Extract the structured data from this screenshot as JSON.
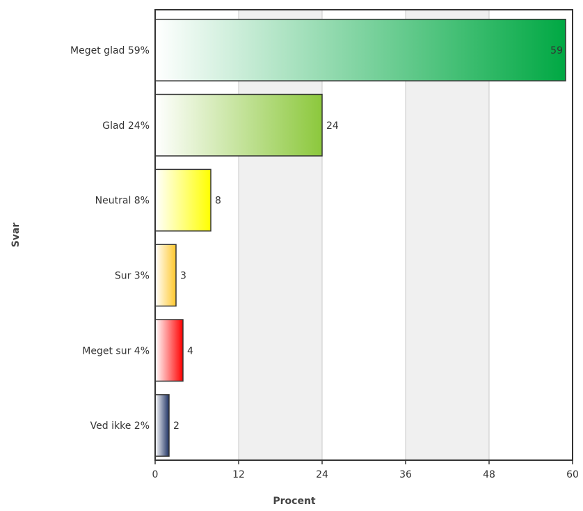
{
  "chart_data": {
    "type": "bar",
    "orientation": "horizontal",
    "categories": [
      "Meget glad 59%",
      "Glad 24%",
      "Neutral 8%",
      "Sur 3%",
      "Meget sur 4%",
      "Ved ikke 2%"
    ],
    "values": [
      59,
      24,
      8,
      3,
      4,
      2
    ],
    "value_labels": [
      "59",
      "24",
      "8",
      "3",
      "4",
      "2"
    ],
    "bar_colors": [
      "#00a843",
      "#8cc83c",
      "#ffff00",
      "#ffc82d",
      "#ff0000",
      "#1e3264"
    ],
    "xlabel": "Procent",
    "ylabel": "Svar",
    "xlim": [
      0,
      60
    ],
    "xticks": [
      "0",
      "12",
      "24",
      "36",
      "48",
      "60"
    ],
    "xtick_values": [
      0,
      12,
      24,
      36,
      48,
      60
    ],
    "grid": true,
    "band_color": "#f0f0f0",
    "legend": false
  }
}
